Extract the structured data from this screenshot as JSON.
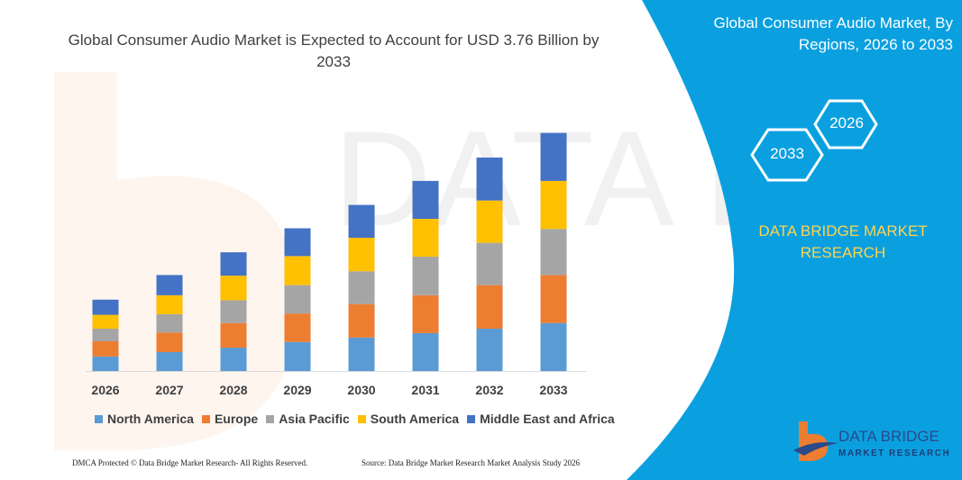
{
  "title": "Global Consumer Audio Market is Expected to Account for USD 3.76 Billion by 2033",
  "side_panel": {
    "title": "Global Consumer Audio Market, By Regions, 2026 to 2033",
    "hex_labels": [
      "2026",
      "2033"
    ],
    "brand": "DATA BRIDGE MARKET RESEARCH",
    "logo_text": "DATA BRIDGE",
    "logo_subtext": "MARKET RESEARCH",
    "color": "#0aa0e0"
  },
  "footer": {
    "left": "DMCA Protected © Data Bridge Market Research- All Rights Reserved.",
    "right": "Source: Data Bridge Market Research Market Analysis Study 2026"
  },
  "chart_data": {
    "type": "bar",
    "stacked": true,
    "title": "Global Consumer Audio Market is Expected to Account for USD 3.76 Billion by 2033",
    "categories": [
      "2026",
      "2027",
      "2028",
      "2029",
      "2030",
      "2031",
      "2032",
      "2033"
    ],
    "series": [
      {
        "name": "North America",
        "color": "#5b9bd5",
        "values": [
          0.23,
          0.3,
          0.37,
          0.46,
          0.53,
          0.6,
          0.67,
          0.76
        ]
      },
      {
        "name": "Europe",
        "color": "#ed7d31",
        "values": [
          0.24,
          0.31,
          0.39,
          0.45,
          0.53,
          0.6,
          0.69,
          0.76
        ]
      },
      {
        "name": "Asia Pacific",
        "color": "#a5a5a5",
        "values": [
          0.2,
          0.29,
          0.36,
          0.45,
          0.52,
          0.61,
          0.67,
          0.73
        ]
      },
      {
        "name": "South America",
        "color": "#ffc000",
        "values": [
          0.22,
          0.3,
          0.39,
          0.46,
          0.53,
          0.6,
          0.67,
          0.76
        ]
      },
      {
        "name": "Middle East and Africa",
        "color": "#4472c4",
        "values": [
          0.24,
          0.32,
          0.37,
          0.44,
          0.52,
          0.6,
          0.68,
          0.76
        ]
      }
    ],
    "ylim": [
      0,
      3.76
    ],
    "grid": false,
    "legend": "bottom"
  }
}
